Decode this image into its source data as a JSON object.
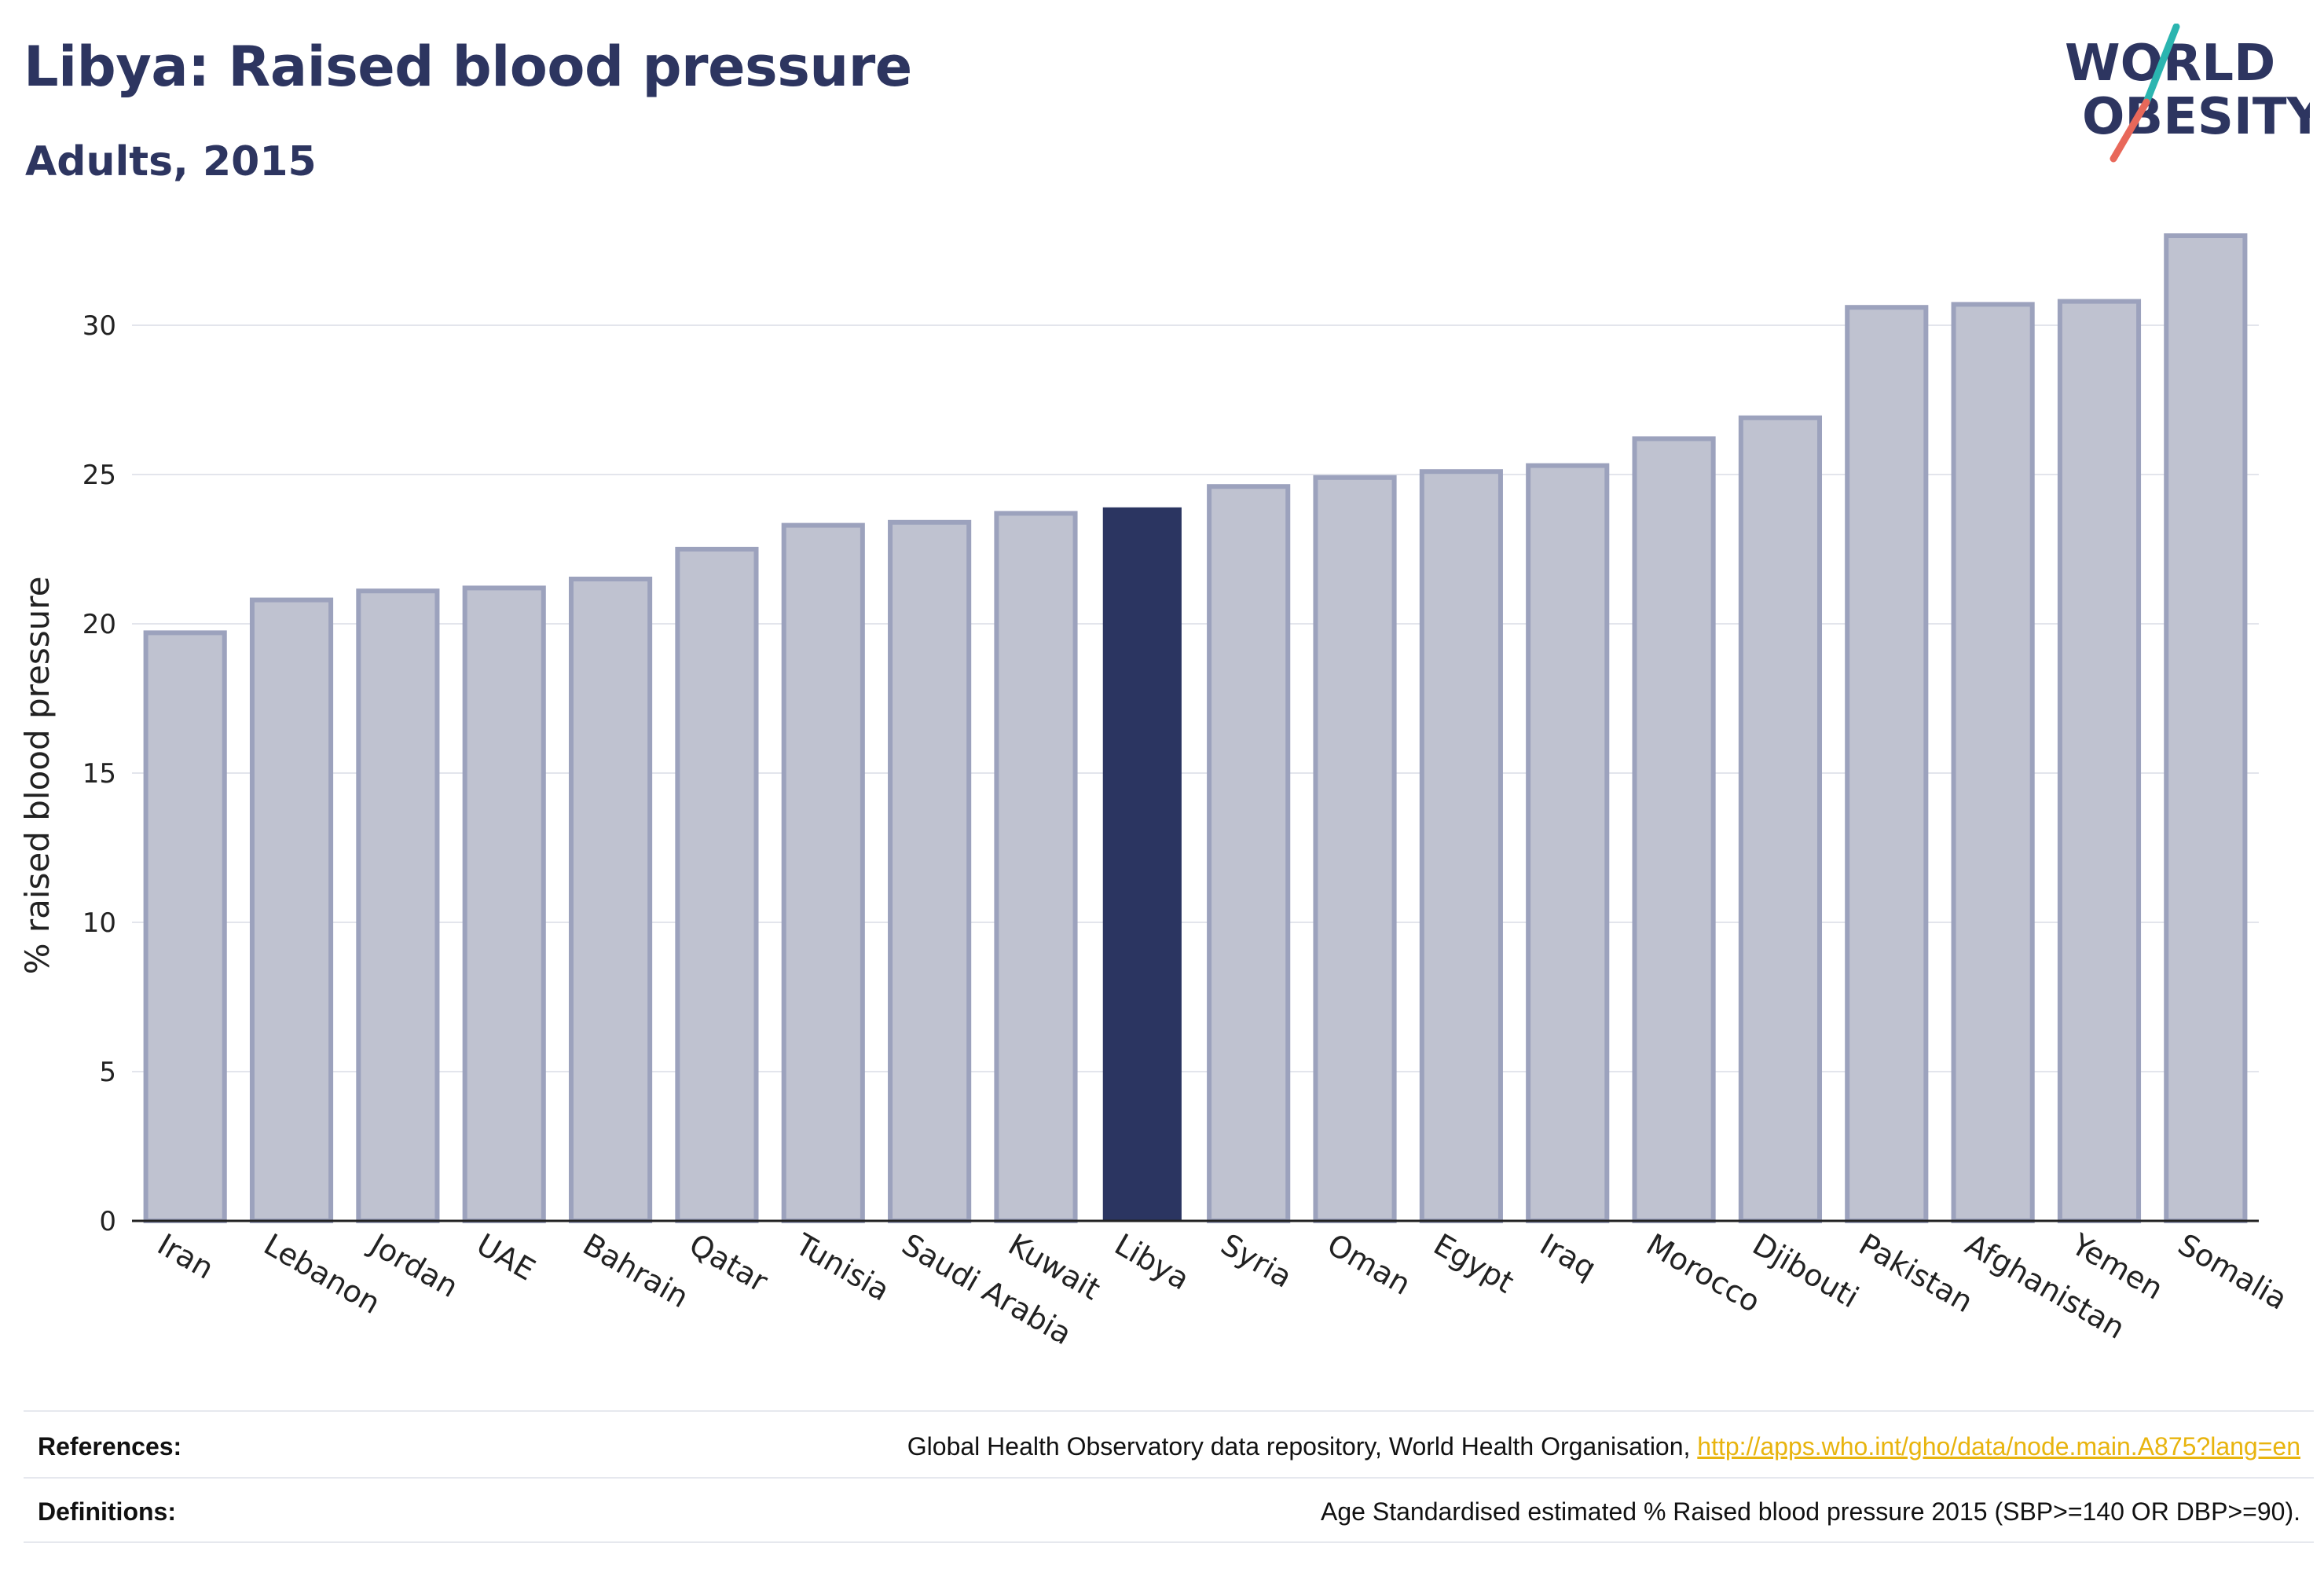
{
  "header": {
    "title": "Libya: Raised blood pressure",
    "subtitle": "Adults, 2015"
  },
  "logo": {
    "line1": "WORLD",
    "line2": "OBESITY",
    "colors": {
      "text": "#2d3560",
      "slash_teal": "#2bb5b0",
      "slash_coral": "#e8685a"
    }
  },
  "colors": {
    "bar": "#bfc2d0",
    "bar_border": "#9ca2bd",
    "highlight": "#2b3561",
    "grid": "#e3e5ec",
    "axis": "#222222",
    "link": "#e8b40e"
  },
  "chart_data": {
    "type": "bar",
    "title": "Libya: Raised blood pressure",
    "subtitle": "Adults, 2015",
    "xlabel": "",
    "ylabel": "% raised blood pressure",
    "categories": [
      "Iran",
      "Lebanon",
      "Jordan",
      "UAE",
      "Bahrain",
      "Qatar",
      "Tunisia",
      "Saudi Arabia",
      "Kuwait",
      "Libya",
      "Syria",
      "Oman",
      "Egypt",
      "Iraq",
      "Morocco",
      "Djibouti",
      "Pakistan",
      "Afghanistan",
      "Yemen",
      "Somalia"
    ],
    "values": [
      19.7,
      20.8,
      21.1,
      21.2,
      21.5,
      22.5,
      23.3,
      23.4,
      23.7,
      23.9,
      24.6,
      24.9,
      25.1,
      25.3,
      26.2,
      26.9,
      30.6,
      30.7,
      30.8,
      33.0
    ],
    "highlight": "Libya",
    "ylim": [
      0,
      33
    ],
    "yticks": [
      0,
      5,
      10,
      15,
      20,
      25,
      30
    ],
    "grid": true,
    "legend": "none"
  },
  "footer": {
    "references_label": "References:",
    "references_text": "Global Health Observatory data repository, World Health Organisation,",
    "references_link": "http://apps.who.int/gho/data/node.main.A875?lang=en",
    "definitions_label": "Definitions:",
    "definitions_text": "Age Standardised estimated % Raised blood pressure 2015 (SBP>=140 OR DBP>=90)."
  }
}
